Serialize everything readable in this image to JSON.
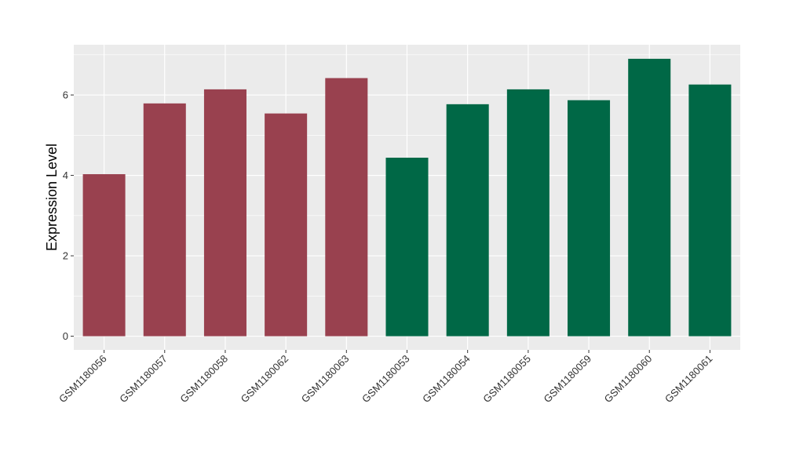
{
  "chart_data": {
    "type": "bar",
    "title": "",
    "xlabel": "",
    "ylabel": "Expression Level",
    "ylim": [
      -0.34,
      7.25
    ],
    "yticks": [
      0,
      2,
      4,
      6
    ],
    "grid": true,
    "legend": "none",
    "categories": [
      "GSM1180056",
      "GSM1180057",
      "GSM1180058",
      "GSM1180062",
      "GSM1180063",
      "GSM1180053",
      "GSM1180054",
      "GSM1180055",
      "GSM1180059",
      "GSM1180060",
      "GSM1180061"
    ],
    "values": [
      4.03,
      5.79,
      6.14,
      5.54,
      6.42,
      4.44,
      5.77,
      6.14,
      5.87,
      6.9,
      6.26
    ],
    "bar_colors": [
      "#99414f",
      "#99414f",
      "#99414f",
      "#99414f",
      "#99414f",
      "#006846",
      "#006846",
      "#006846",
      "#006846",
      "#006846",
      "#006846"
    ],
    "panel_background": "#ebebeb",
    "grid_color": "#ffffff"
  }
}
